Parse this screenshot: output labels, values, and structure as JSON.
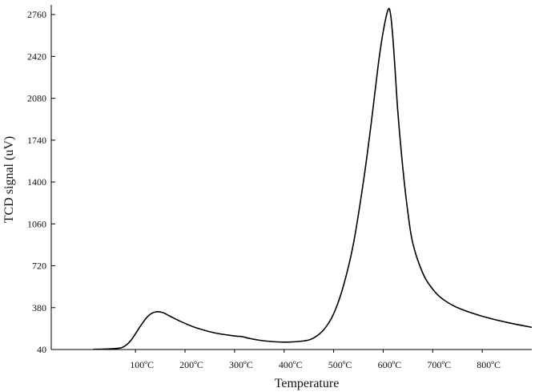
{
  "chart_data": {
    "type": "line",
    "title": "",
    "xlabel": "Temperature",
    "ylabel": "TCD signal (uV)",
    "x_unit": "°C",
    "xlim": [
      -70,
      900
    ],
    "ylim": [
      40,
      2800
    ],
    "x_ticks": [
      100,
      200,
      300,
      400,
      500,
      600,
      700,
      800
    ],
    "x_tick_labels": [
      "100ºC",
      "200ºC",
      "300ºC",
      "400ºC",
      "500ºC",
      "600ºC",
      "700ºC",
      "800ºC"
    ],
    "y_ticks": [
      40,
      380,
      720,
      1060,
      1400,
      1740,
      2080,
      2420,
      2760
    ],
    "y_tick_labels": [
      "40",
      "380",
      "720",
      "1060",
      "1400",
      "1740",
      "2080",
      "2420",
      "2760"
    ],
    "grid": false,
    "legend": "none",
    "line_color": "#000000",
    "series": [
      {
        "x": [
          15,
          40,
          60,
          75,
          90,
          110,
          125,
          140,
          155,
          170,
          190,
          220,
          260,
          300,
          315,
          330,
          360,
          400,
          440,
          460,
          480,
          500,
          520,
          540,
          560,
          575,
          590,
          600,
          610,
          615,
          620,
          625,
          630,
          640,
          650,
          660,
          680,
          700,
          720,
          750,
          800,
          850,
          900
        ],
        "y": [
          42,
          44,
          48,
          60,
          110,
          230,
          310,
          345,
          340,
          310,
          270,
          220,
          175,
          150,
          145,
          130,
          110,
          100,
          110,
          135,
          200,
          330,
          560,
          900,
          1400,
          1850,
          2350,
          2620,
          2800,
          2760,
          2550,
          2250,
          1950,
          1500,
          1150,
          900,
          660,
          530,
          450,
          380,
          310,
          260,
          220
        ]
      }
    ]
  }
}
